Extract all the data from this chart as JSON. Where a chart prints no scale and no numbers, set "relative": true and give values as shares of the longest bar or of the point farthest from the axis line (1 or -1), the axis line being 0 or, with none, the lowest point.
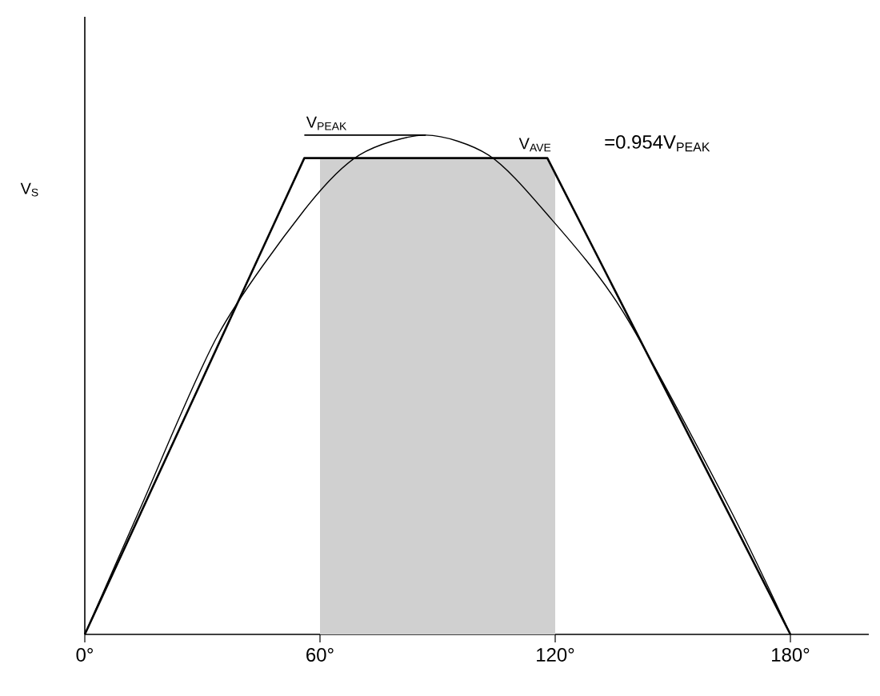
{
  "chart_data": {
    "type": "line",
    "relative": true,
    "ylabel": "V$_{S}$",
    "xlim": [
      0,
      200
    ],
    "xticks": [
      {
        "value": 0,
        "label": "0°"
      },
      {
        "value": 60,
        "label": "60°"
      },
      {
        "value": 120,
        "label": "120°"
      },
      {
        "value": 180,
        "label": "180°"
      }
    ],
    "series": [
      {
        "color": "#000000",
        "x": [
          0,
          56,
          118,
          180
        ],
        "values": [
          0,
          0.954,
          0.954,
          0
        ]
      },
      {
        "color": "#000000",
        "x": [
          0,
          14,
          34,
          56,
          70,
          87,
          103,
          117,
          137,
          164,
          180
        ],
        "values": [
          0,
          0.25,
          0.6,
          0.85,
          0.96,
          1,
          0.96,
          0.85,
          0.65,
          0.26,
          0
        ]
      }
    ],
    "bands": [
      {
        "axis": "x",
        "from": 60,
        "to": 120,
        "color": "#d0d0d0"
      }
    ],
    "annotations": [
      "V$_{PEAK}$",
      {
        "text": "V$_{AVE}$",
        "x": 118,
        "y": 0.954
      },
      "=0.954V$_{PEAK}$"
    ],
    "line_style": "solid",
    "marker": "none"
  }
}
